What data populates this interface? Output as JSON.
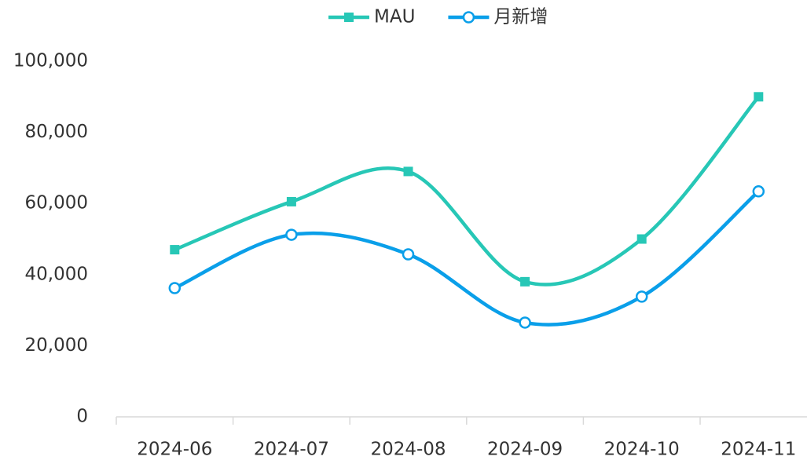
{
  "chart_data": {
    "type": "line",
    "smooth": true,
    "categories": [
      "2024-06",
      "2024-07",
      "2024-08",
      "2024-09",
      "2024-10",
      "2024-11"
    ],
    "series": [
      {
        "name": "MAU",
        "color": "#27c7b6",
        "marker": "square",
        "values": [
          47000,
          60500,
          69000,
          38000,
          50000,
          90000
        ]
      },
      {
        "name": "月新增",
        "color": "#0a9fe9",
        "marker": "circle",
        "values": [
          36200,
          51200,
          45700,
          26500,
          33800,
          63400
        ]
      }
    ],
    "ylim": [
      0,
      100000
    ],
    "yticks": [
      0,
      {
        "value": 20000,
        "label": "20,000"
      },
      {
        "value": 40000,
        "label": "40,000"
      },
      {
        "value": 60000,
        "label": "60,000"
      },
      {
        "value": 80000,
        "label": "80,000"
      },
      {
        "value": 100000,
        "label": "100,000"
      }
    ],
    "grid": false,
    "legend": "top"
  }
}
